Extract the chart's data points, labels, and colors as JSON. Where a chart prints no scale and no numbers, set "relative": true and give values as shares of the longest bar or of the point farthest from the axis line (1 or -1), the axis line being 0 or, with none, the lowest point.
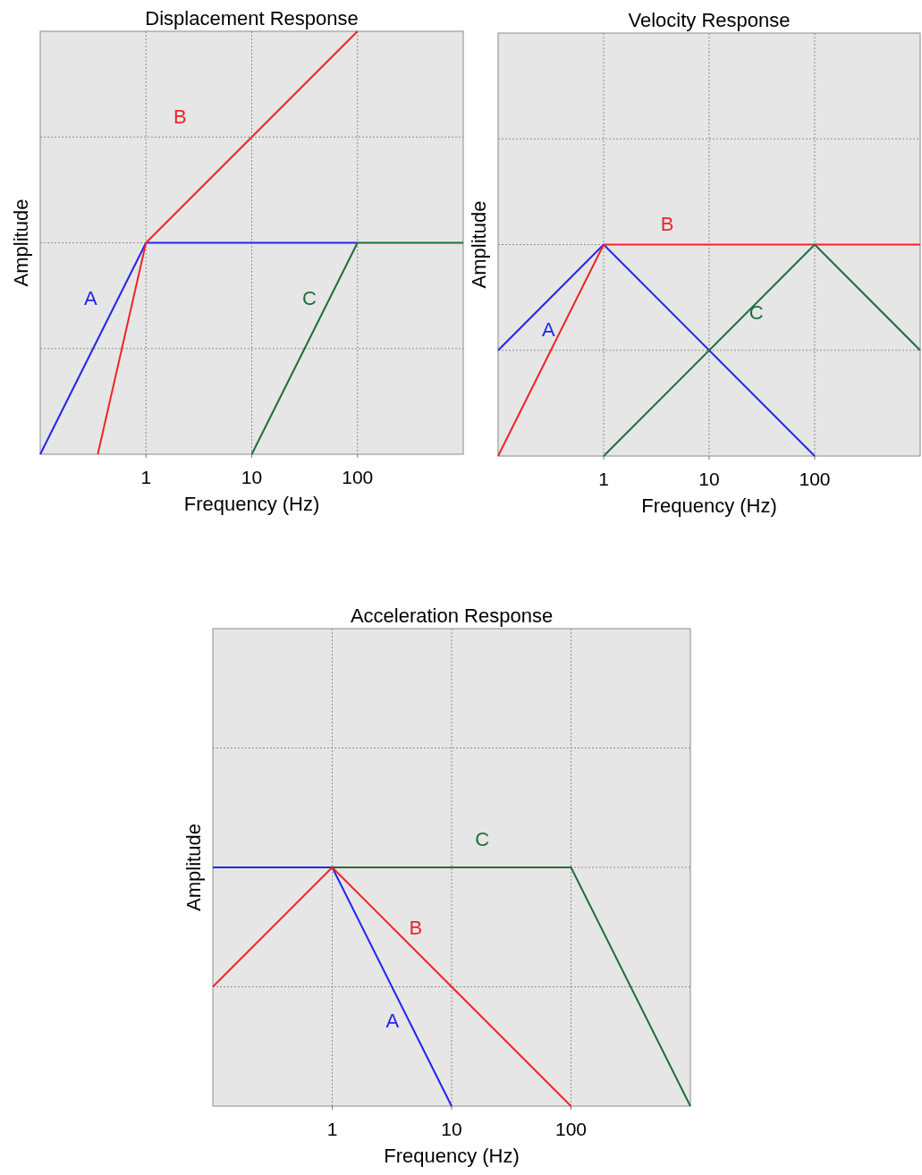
{
  "chart_data": [
    {
      "type": "line",
      "title": "Displacement Response",
      "xlabel": "Frequency (Hz)",
      "ylabel": "Amplitude",
      "log": "x",
      "xlim": [
        0.1,
        1000
      ],
      "xticks": [
        1,
        10,
        100
      ],
      "relative": true,
      "grid": true,
      "legend": false,
      "marker": "none",
      "line_style": "solid",
      "series": [
        {
          "name": "A",
          "color": "#2424f0",
          "x": [
            0.1,
            1,
            100
          ],
          "values": [
            0,
            0.5,
            0.5
          ]
        },
        {
          "name": "B",
          "color": "#f02424",
          "x": [
            0.35,
            1,
            100
          ],
          "values": [
            0,
            0.5,
            1
          ]
        },
        {
          "name": "C",
          "color": "#1e6e3c",
          "x": [
            10,
            100,
            1000
          ],
          "values": [
            0,
            0.5,
            0.5
          ]
        }
      ]
    },
    {
      "type": "line",
      "title": "Velocity Response",
      "xlabel": "Frequency (Hz)",
      "ylabel": "Amplitude",
      "log": "x",
      "xlim": [
        0.1,
        1000
      ],
      "xticks": [
        1,
        10,
        100
      ],
      "relative": true,
      "grid": true,
      "legend": false,
      "marker": "none",
      "line_style": "solid",
      "series": [
        {
          "name": "A",
          "color": "#2424f0",
          "x": [
            0.1,
            1,
            100
          ],
          "values": [
            0.5,
            1,
            0
          ]
        },
        {
          "name": "B",
          "color": "#f02424",
          "x": [
            0.1,
            1,
            1000
          ],
          "values": [
            0,
            1,
            1
          ]
        },
        {
          "name": "C",
          "color": "#1e6e3c",
          "x": [
            1,
            100,
            1000
          ],
          "values": [
            0,
            1,
            0.5
          ]
        }
      ]
    },
    {
      "type": "line",
      "title": "Acceleration Response",
      "xlabel": "Frequency (Hz)",
      "ylabel": "Amplitude",
      "log": "x",
      "xlim": [
        0.1,
        1000
      ],
      "xticks": [
        1,
        10,
        100
      ],
      "relative": true,
      "grid": true,
      "legend": false,
      "marker": "none",
      "line_style": "solid",
      "series": [
        {
          "name": "A",
          "color": "#2424f0",
          "x": [
            0.1,
            1,
            10
          ],
          "values": [
            1,
            1,
            0
          ]
        },
        {
          "name": "B",
          "color": "#f02424",
          "x": [
            0.1,
            1,
            100
          ],
          "values": [
            0.5,
            1,
            0
          ]
        },
        {
          "name": "C",
          "color": "#1e6e3c",
          "x": [
            1,
            100,
            1000
          ],
          "values": [
            1,
            1,
            0
          ]
        }
      ]
    }
  ]
}
